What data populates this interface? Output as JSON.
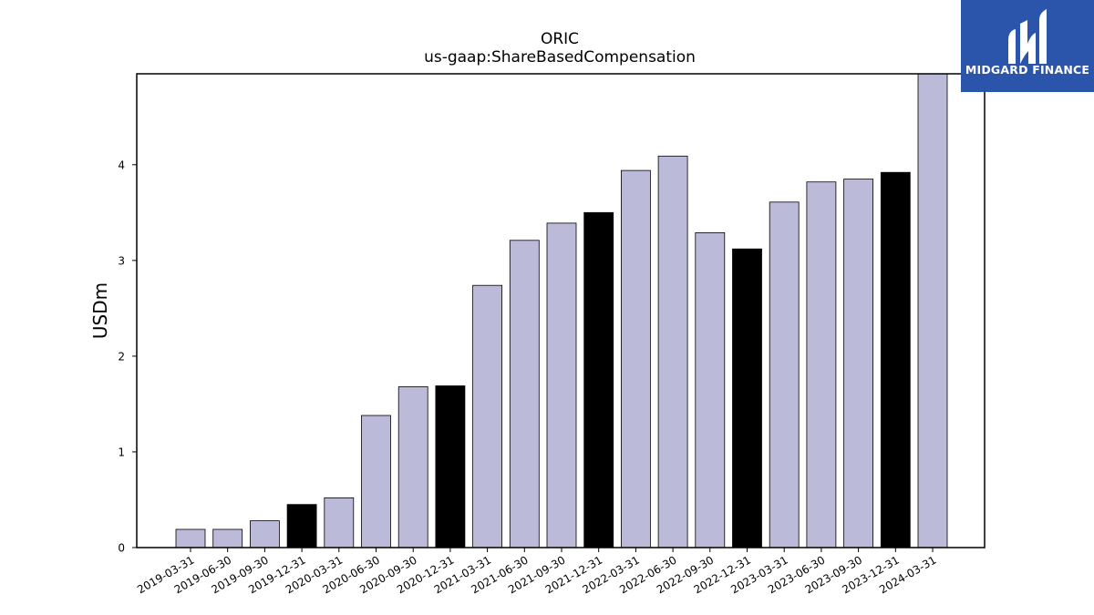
{
  "logo": {
    "text": "MIDGARD FINANCE",
    "background": "#2b55aa"
  },
  "chart_data": {
    "type": "bar",
    "title": "ORIC",
    "subtitle": "us-gaap:ShareBasedCompensation",
    "xlabel": "",
    "ylabel": "USDm",
    "ylim": [
      0,
      4.95
    ],
    "yticks": [
      0,
      1,
      2,
      3,
      4
    ],
    "grid": false,
    "categories": [
      "2019-03-31",
      "2019-06-30",
      "2019-09-30",
      "2019-12-31",
      "2020-03-31",
      "2020-06-30",
      "2020-09-30",
      "2020-12-31",
      "2021-03-31",
      "2021-06-30",
      "2021-09-30",
      "2021-12-31",
      "2022-03-31",
      "2022-06-30",
      "2022-09-30",
      "2022-12-31",
      "2023-03-31",
      "2023-06-30",
      "2023-09-30",
      "2023-12-31",
      "2024-03-31"
    ],
    "values": [
      0.19,
      0.19,
      0.28,
      0.45,
      0.52,
      1.38,
      1.68,
      1.69,
      2.74,
      3.21,
      3.39,
      3.5,
      3.94,
      4.09,
      3.29,
      3.12,
      3.61,
      3.82,
      3.85,
      3.92,
      4.95
    ],
    "colors": {
      "quarter": "#bcbad9",
      "year_end": "#000000",
      "edge": "#000000"
    },
    "year_end_flags": [
      false,
      false,
      false,
      true,
      false,
      false,
      false,
      true,
      false,
      false,
      false,
      true,
      false,
      false,
      false,
      true,
      false,
      false,
      false,
      true,
      false
    ]
  }
}
